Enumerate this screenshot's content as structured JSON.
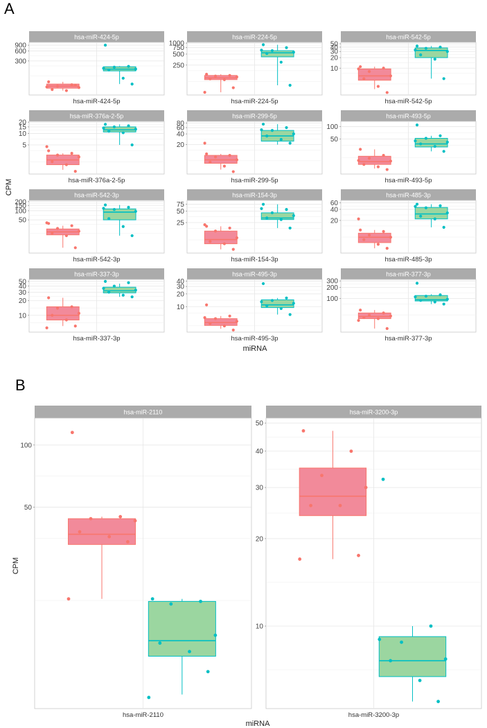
{
  "chart_data": [
    {
      "type": "box",
      "panel_label": "A",
      "xlabel": "miRNA",
      "ylabel": "CPM",
      "y_scale": "log",
      "groups_colors": [
        "#f8766d",
        "#00bfc4"
      ],
      "box_fill_colors": [
        "#f28a9a",
        "#9bd6a0"
      ],
      "facets": [
        {
          "title": "hsa-miR-424-5p",
          "xtick": "hsa-miR-424-5p",
          "ylim": [
            28,
            1100
          ],
          "yticks": [
            300,
            600,
            900
          ],
          "groups": [
            {
              "q1": 45,
              "median": 52,
              "q3": 60,
              "wlo": 38,
              "whi": 70,
              "points": [
                70,
                57,
                52,
                47,
                41,
                38,
                55,
                49
              ]
            },
            {
              "q1": 150,
              "median": 170,
              "q3": 200,
              "wlo": 60,
              "whi": 210,
              "points": [
                900,
                205,
                195,
                170,
                160,
                90,
                60,
                180
              ]
            }
          ]
        },
        {
          "title": "hsa-miR-224-5p",
          "xtick": "hsa-miR-224-5p",
          "ylim": [
            38,
            1050
          ],
          "yticks": [
            250,
            500,
            750,
            1000
          ],
          "groups": [
            {
              "q1": 100,
              "median": 112,
              "q3": 130,
              "wlo": 45,
              "whi": 140,
              "points": [
                140,
                130,
                125,
                118,
                105,
                100,
                60,
                45
              ]
            },
            {
              "q1": 420,
              "median": 540,
              "q3": 620,
              "wlo": 70,
              "whi": 900,
              "points": [
                900,
                750,
                620,
                560,
                520,
                300,
                70,
                640
              ]
            }
          ]
        },
        {
          "title": "hsa-miR-542-5p",
          "xtick": "hsa-miR-542-5p",
          "ylim": [
            1.7,
            55
          ],
          "yticks": [
            10,
            20,
            30,
            40,
            50
          ],
          "groups": [
            {
              "q1": 4.5,
              "median": 6,
              "q3": 9.5,
              "wlo": 2.5,
              "whi": 11,
              "points": [
                11,
                10,
                8,
                6,
                5,
                3,
                2,
                9.5
              ]
            },
            {
              "q1": 20,
              "median": 32,
              "q3": 38,
              "wlo": 5,
              "whi": 43,
              "points": [
                43,
                40,
                37,
                30,
                24,
                18,
                5,
                33
              ]
            }
          ]
        },
        {
          "title": "hsa-miR-376a-2-5p",
          "xtick": "hsa-miR-376a-2-5p",
          "ylim": [
            0.85,
            21
          ],
          "yticks": [
            5,
            10,
            15,
            20
          ],
          "groups": [
            {
              "q1": 1.5,
              "median": 2.0,
              "q3": 2.7,
              "wlo": 1.1,
              "whi": 3.0,
              "points": [
                3.5,
                3.0,
                2.7,
                2.4,
                1.8,
                1.5,
                1.0,
                4.5
              ]
            },
            {
              "q1": 11,
              "median": 12.5,
              "q3": 15,
              "wlo": 5,
              "whi": 17.5,
              "points": [
                17.5,
                16,
                15,
                13,
                11.5,
                10.5,
                5,
                14
              ]
            }
          ]
        },
        {
          "title": "hsa-miR-299-5p",
          "xtick": "hsa-miR-299-5p",
          "ylim": [
            3,
            90
          ],
          "yticks": [
            20,
            40,
            60,
            80
          ],
          "groups": [
            {
              "q1": 6,
              "median": 7.5,
              "q3": 10,
              "wlo": 4,
              "whi": 11,
              "points": [
                11,
                10,
                9,
                7.5,
                6.5,
                5,
                3.5,
                22
              ]
            },
            {
              "q1": 25,
              "median": 35,
              "q3": 50,
              "wlo": 20,
              "whi": 75,
              "points": [
                75,
                60,
                50,
                40,
                35,
                28,
                22,
                52
              ]
            }
          ]
        },
        {
          "title": "hsa-miR-493-5p",
          "xtick": "hsa-miR-493-5p",
          "ylim": [
            7,
            135
          ],
          "yticks": [
            50,
            100
          ],
          "groups": [
            {
              "q1": 12,
              "median": 14,
              "q3": 19,
              "wlo": 9.5,
              "whi": 28,
              "points": [
                28,
                20,
                17,
                14.5,
                12,
                10.5,
                9,
                15
              ]
            },
            {
              "q1": 32,
              "median": 38,
              "q3": 52,
              "wlo": 25,
              "whi": 60,
              "points": [
                110,
                60,
                52,
                42,
                38,
                33,
                25,
                45
              ]
            }
          ]
        },
        {
          "title": "hsa-miR-542-3p",
          "xtick": "hsa-miR-542-3p",
          "ylim": [
            4,
            220
          ],
          "yticks": [
            50,
            100,
            150,
            200
          ],
          "groups": [
            {
              "q1": 16,
              "median": 20,
              "q3": 25,
              "wlo": 6,
              "whi": 32,
              "points": [
                38,
                32,
                26,
                21,
                18,
                15,
                6,
                40
              ]
            },
            {
              "q1": 50,
              "median": 90,
              "q3": 115,
              "wlo": 15,
              "whi": 155,
              "points": [
                155,
                130,
                110,
                95,
                55,
                30,
                15,
                120
              ]
            }
          ]
        },
        {
          "title": "hsa-miR-154-3p",
          "xtick": "hsa-miR-154-3p",
          "ylim": [
            4,
            95
          ],
          "yticks": [
            25,
            50,
            75
          ],
          "groups": [
            {
              "q1": 7,
              "median": 9,
              "q3": 15,
              "wlo": 5,
              "whi": 20,
              "points": [
                20,
                18,
                15,
                10,
                8,
                7,
                5,
                22
              ]
            },
            {
              "q1": 30,
              "median": 33,
              "q3": 45,
              "wlo": 18,
              "whi": 75,
              "points": [
                75,
                55,
                45,
                38,
                33,
                30,
                18,
                58
              ]
            }
          ]
        },
        {
          "title": "hsa-miR-485-3p",
          "xtick": "hsa-miR-485-3p",
          "ylim": [
            2.6,
            70
          ],
          "yticks": [
            20,
            40,
            60
          ],
          "groups": [
            {
              "q1": 5,
              "median": 7,
              "q3": 9,
              "wlo": 3.5,
              "whi": 11,
              "points": [
                11,
                10,
                8,
                7,
                6,
                4.5,
                3.5,
                22
              ]
            },
            {
              "q1": 22,
              "median": 30,
              "q3": 45,
              "wlo": 13,
              "whi": 55,
              "points": [
                55,
                50,
                44,
                32,
                26,
                22,
                13,
                48
              ]
            }
          ]
        },
        {
          "title": "hsa-miR-337-3p",
          "xtick": "hsa-miR-337-3p",
          "ylim": [
            4.5,
            55
          ],
          "yticks": [
            10,
            20,
            30,
            40,
            50
          ],
          "groups": [
            {
              "q1": 8,
              "median": 10,
              "q3": 15,
              "wlo": 6,
              "whi": 23,
              "points": [
                23,
                15,
                14,
                11,
                10,
                8,
                6,
                5.5
              ]
            },
            {
              "q1": 29,
              "median": 32,
              "q3": 38,
              "wlo": 24,
              "whi": 45,
              "points": [
                50,
                47,
                40,
                33,
                30,
                26,
                24,
                36
              ]
            }
          ]
        },
        {
          "title": "hsa-miR-495-3p",
          "xtick": "hsa-miR-495-3p",
          "ylim": [
            2.5,
            44
          ],
          "yticks": [
            10,
            20,
            30,
            40
          ],
          "groups": [
            {
              "q1": 3.6,
              "median": 4.2,
              "q3": 5.2,
              "wlo": 3.0,
              "whi": 6.0,
              "points": [
                11,
                6,
                5.2,
                4.5,
                4,
                3.5,
                2.8,
                5.5
              ]
            },
            {
              "q1": 9.5,
              "median": 11,
              "q3": 14.5,
              "wlo": 6.5,
              "whi": 16,
              "points": [
                35,
                16,
                14,
                12,
                10.5,
                9,
                6.5,
                13
              ]
            }
          ]
        },
        {
          "title": "hsa-miR-377-3p",
          "xtick": "hsa-miR-377-3p",
          "ylim": [
            12,
            330
          ],
          "yticks": [
            100,
            200,
            300
          ],
          "groups": [
            {
              "q1": 28,
              "median": 32,
              "q3": 40,
              "wlo": 15,
              "whi": 48,
              "points": [
                48,
                40,
                35,
                33,
                30,
                28,
                15,
                25
              ]
            },
            {
              "q1": 85,
              "median": 92,
              "q3": 120,
              "wlo": 70,
              "whi": 130,
              "points": [
                260,
                125,
                115,
                95,
                88,
                80,
                70,
                110
              ]
            }
          ]
        }
      ]
    },
    {
      "type": "box",
      "panel_label": "B",
      "xlabel": "miRNA",
      "ylabel": "CPM",
      "y_scale": "log",
      "groups_colors": [
        "#f8766d",
        "#00bfc4"
      ],
      "box_fill_colors": [
        "#f28a9a",
        "#9bd6a0"
      ],
      "facets": [
        {
          "title": "hsa-miR-2110",
          "xtick": "hsa-miR-2110",
          "ylim": [
            5.3,
            135
          ],
          "yticks": [
            50,
            100
          ],
          "groups": [
            {
              "q1": 33,
              "median": 37,
              "q3": 44,
              "wlo": 18,
              "whi": 45,
              "points": [
                115,
                45,
                44,
                43,
                38,
                36,
                34,
                18
              ]
            },
            {
              "q1": 9.5,
              "median": 11.3,
              "q3": 17.5,
              "wlo": 6.2,
              "whi": 18,
              "points": [
                18,
                17.5,
                17,
                12,
                11,
                10,
                8,
                6
              ]
            }
          ]
        },
        {
          "title": "hsa-miR-3200-3p",
          "xtick": "hsa-miR-3200-3p",
          "ylim": [
            5.2,
            52
          ],
          "yticks": [
            10,
            20,
            30,
            40,
            50
          ],
          "groups": [
            {
              "q1": 24,
              "median": 28,
              "q3": 35,
              "wlo": 17,
              "whi": 47,
              "points": [
                47,
                40,
                33,
                30,
                26,
                26,
                17.5,
                17
              ]
            },
            {
              "q1": 6.7,
              "median": 7.6,
              "q3": 9.2,
              "wlo": 5.5,
              "whi": 10,
              "points": [
                32,
                10,
                8.8,
                7.7,
                7.6,
                6.5,
                5.5,
                9
              ]
            }
          ]
        }
      ]
    }
  ]
}
